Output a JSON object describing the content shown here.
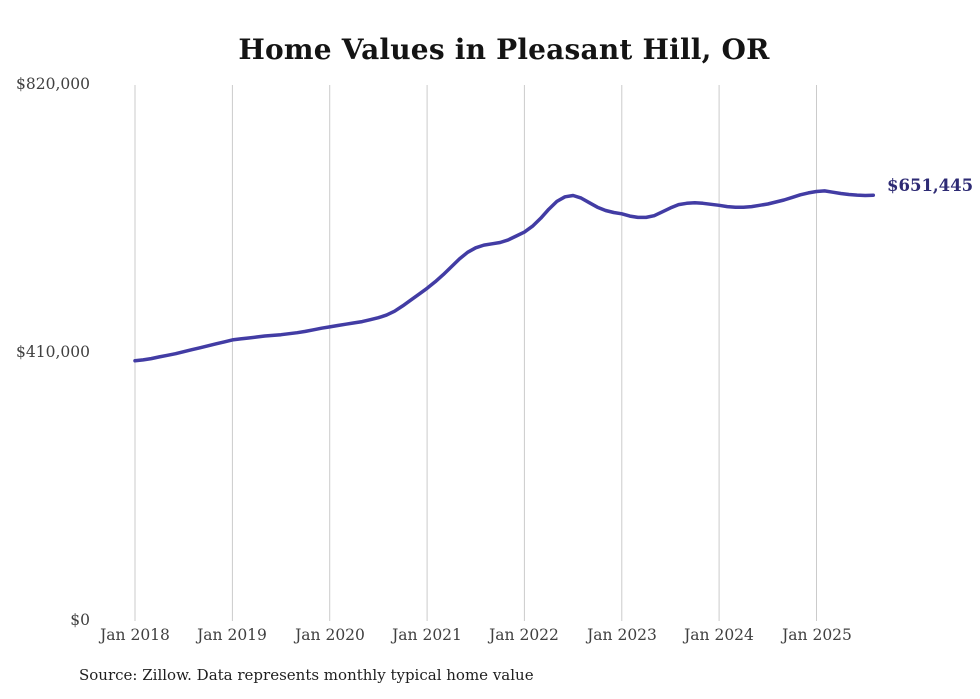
{
  "page": {
    "title": "Home Values in Pleasant Hill, OR",
    "source_note": "Source: Zillow. Data represents monthly typical home value"
  },
  "y_axis": {
    "tick_labels": [
      "$820,000",
      "$410,000",
      "$0"
    ]
  },
  "x_axis": {
    "tick_labels": [
      "Jan 2018",
      "Jan 2019",
      "Jan 2020",
      "Jan 2021",
      "Jan 2022",
      "Jan 2023",
      "Jan 2024",
      "Jan 2025"
    ]
  },
  "annotations": {
    "latest_value_label": "$651,445"
  },
  "colors": {
    "line": "#423CA4",
    "latest_label": "#2E2B74",
    "gridline": "#CBCBCB",
    "tick_text": "#404040",
    "title_text": "#141414",
    "source_text": "#1F1F1F",
    "background": "#FFFFFF"
  },
  "chart_data": {
    "type": "line",
    "title": "Home Values in Pleasant Hill, OR",
    "xlabel": "",
    "ylabel": "",
    "ylim": [
      0,
      820000
    ],
    "grid": "vertical-only",
    "legend": "none",
    "x_start": "Jan 2018",
    "x_end": "Aug 2025",
    "frequency": "monthly",
    "x_tick_labels": [
      "Jan 2018",
      "Jan 2019",
      "Jan 2020",
      "Jan 2021",
      "Jan 2022",
      "Jan 2023",
      "Jan 2024",
      "Jan 2025"
    ],
    "y_tick_labels": [
      "$0",
      "$410,000",
      "$820,000"
    ],
    "end_value": 651445,
    "series": [
      {
        "name": "Typical home value",
        "values": [
          398000,
          399500,
          401500,
          404000,
          406500,
          409000,
          412000,
          415000,
          418000,
          421000,
          424000,
          427000,
          430000,
          431500,
          433000,
          434500,
          436000,
          437000,
          438000,
          439500,
          441000,
          443000,
          445500,
          448000,
          450000,
          452000,
          454000,
          456000,
          458000,
          461000,
          464000,
          468000,
          474000,
          482000,
          491000,
          500000,
          509000,
          519000,
          530000,
          542000,
          554000,
          564000,
          571000,
          575000,
          577000,
          579000,
          583000,
          589000,
          595000,
          604000,
          616000,
          630000,
          642000,
          649000,
          651000,
          647000,
          640000,
          633000,
          628000,
          625000,
          623000,
          619500,
          617500,
          617500,
          620000,
          626000,
          632000,
          637000,
          639000,
          640000,
          639000,
          637500,
          636000,
          634000,
          633000,
          633000,
          634000,
          636000,
          638000,
          641000,
          644000,
          648000,
          652000,
          655000,
          657000,
          658000,
          656000,
          654000,
          652500,
          651500,
          651000,
          651445
        ]
      }
    ]
  }
}
